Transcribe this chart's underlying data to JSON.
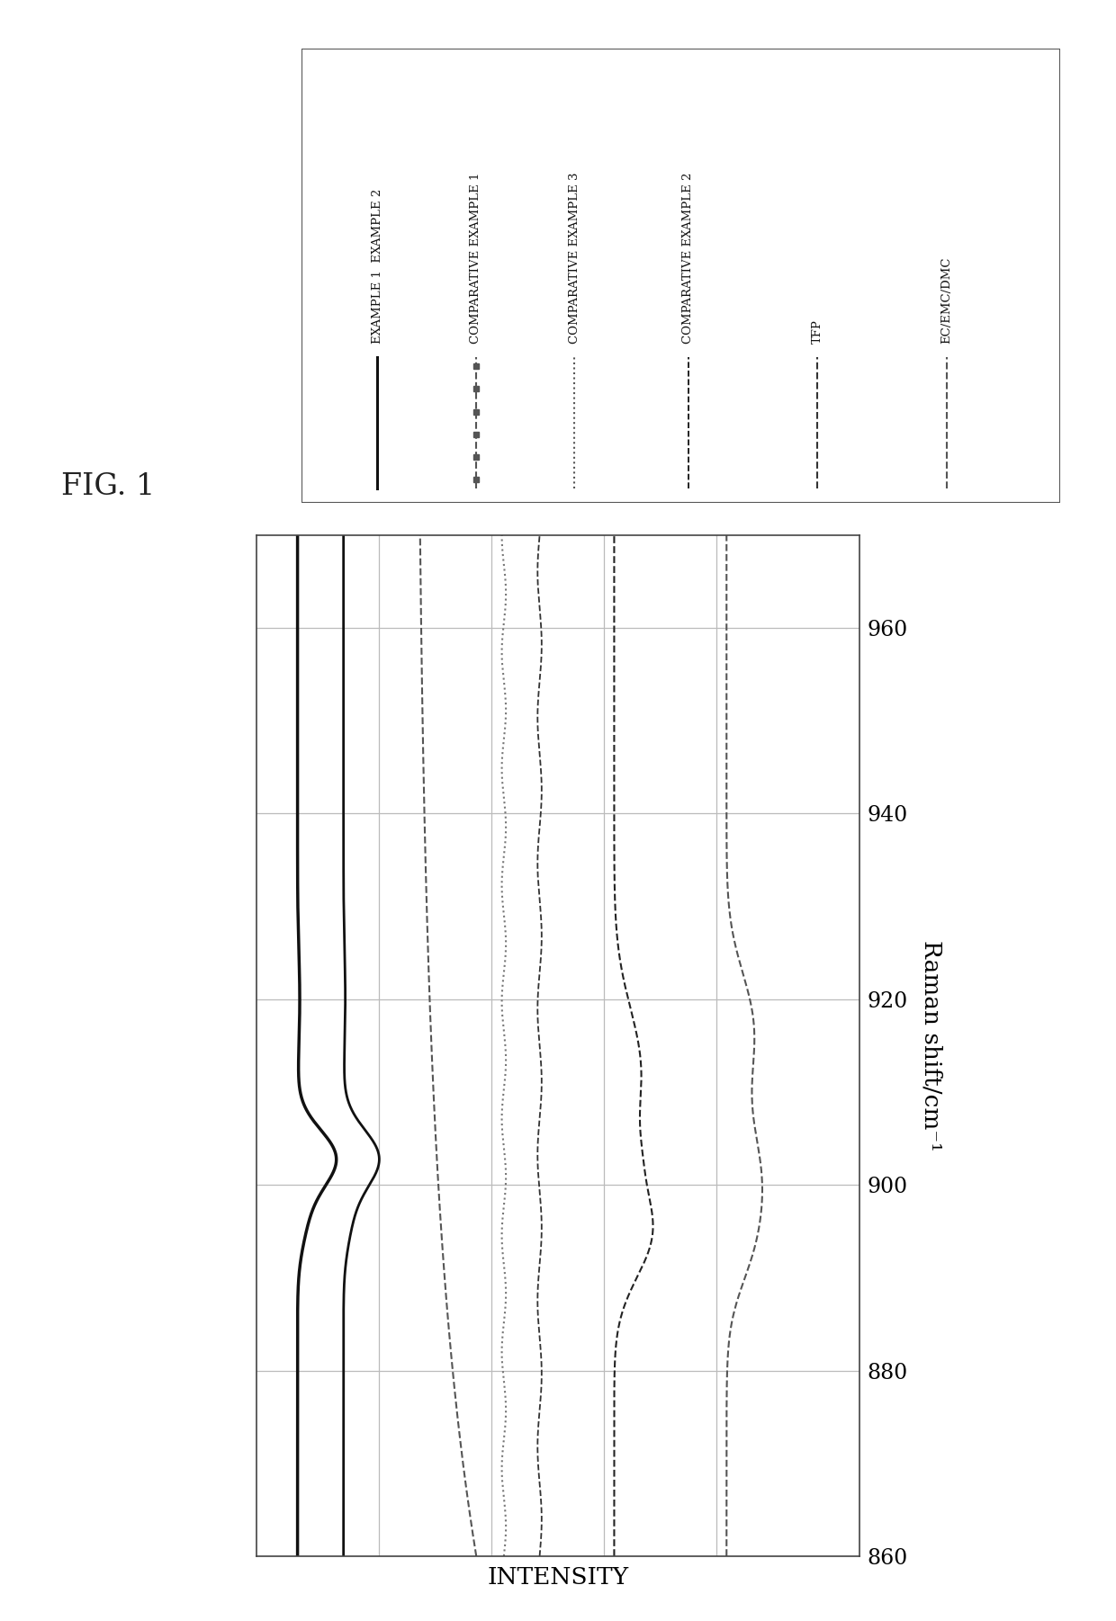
{
  "fig_label": "FIG. 1",
  "raman_label": "Raman shift/cm⁻¹",
  "intensity_label": "INTENSITY",
  "raman_min": 860,
  "raman_max": 970,
  "raman_ticks": [
    860,
    880,
    900,
    920,
    940,
    960
  ],
  "legend_lines": [
    {
      "label": "EXAMPLE 1  EXAMPLE 2",
      "ls": "-",
      "lw": 2.2,
      "color": "#111111"
    },
    {
      "label": "COMPARATIVE EXAMPLE 1",
      "ls": "--",
      "lw": 1.5,
      "color": "#555555"
    },
    {
      "label": "COMPARATIVE EXAMPLE 3",
      "ls": ":",
      "lw": 1.5,
      "color": "#555555"
    },
    {
      "label": "COMPARATIVE EXAMPLE 2",
      "ls": "--",
      "lw": 1.3,
      "color": "#111111"
    },
    {
      "label": "TFP",
      "ls": "--",
      "lw": 1.5,
      "color": "#333333"
    },
    {
      "label": "EC/EMC/DMC",
      "ls": "--",
      "lw": 1.5,
      "color": "#777777"
    }
  ],
  "trace_colors": [
    "#111111",
    "#111111",
    "#555555",
    "#777777",
    "#333333",
    "#222222",
    "#555555"
  ],
  "trace_linestyles": [
    "-",
    "-",
    "--",
    ":",
    "--",
    "--",
    "--"
  ],
  "trace_linewidths": [
    2.5,
    2.0,
    1.5,
    1.5,
    1.3,
    1.5,
    1.5
  ],
  "grid_color": "#bbbbbb",
  "spine_color": "#444444"
}
